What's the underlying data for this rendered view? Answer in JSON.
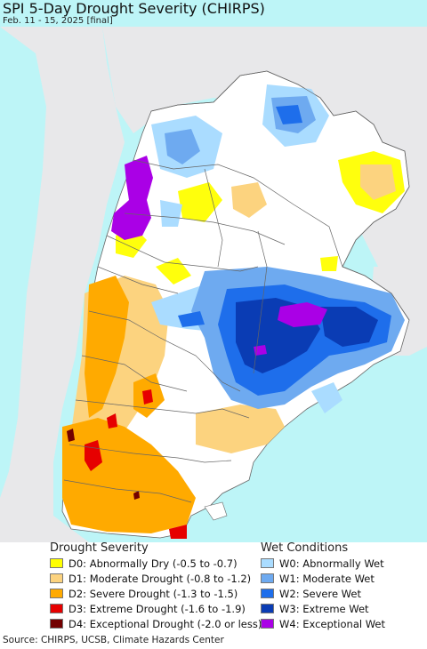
{
  "title": "SPI 5-Day Drought Severity (CHIRPS)",
  "subtitle": "Feb. 11 - 15, 2025 [final]",
  "legend": {
    "drought_title": "Drought Severity",
    "drought": [
      {
        "label": "D0: Abnormally Dry (-0.5 to -0.7)",
        "color": "#ffff00"
      },
      {
        "label": "D1: Moderate Drought (-0.8 to -1.2)",
        "color": "#fcd37f"
      },
      {
        "label": "D2: Severe Drought (-1.3 to -1.5)",
        "color": "#ffaa00"
      },
      {
        "label": "D3: Extreme Drought (-1.6 to -1.9)",
        "color": "#e60000"
      },
      {
        "label": "D4: Exceptional Drought (-2.0 or less)",
        "color": "#730000"
      }
    ],
    "wet_title": "Wet Conditions",
    "wet": [
      {
        "label": "W0: Abnormally Wet",
        "color": "#aadcff"
      },
      {
        "label": "W1: Moderate Wet",
        "color": "#6eaaf0"
      },
      {
        "label": "W2: Severe Wet",
        "color": "#1e6eeb"
      },
      {
        "label": "W3: Extreme Wet",
        "color": "#0a3cb4"
      },
      {
        "label": "W4: Exceptional Wet",
        "color": "#aa00e6"
      }
    ]
  },
  "colors": {
    "ocean": "#bdf5f7",
    "outside_land": "#e8e8ea",
    "land": "#ffffff",
    "borders": "#666666"
  },
  "source": "Source: CHIRPS, UCSB, Climate Hazards Center"
}
